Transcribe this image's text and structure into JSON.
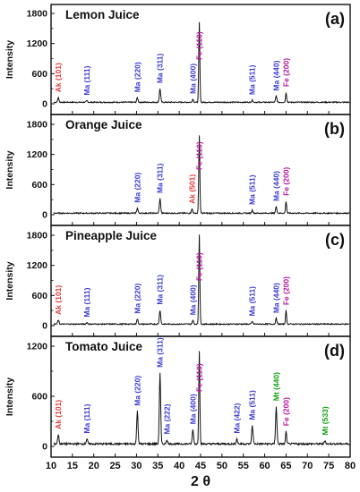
{
  "chart_data": {
    "type": "line",
    "xlabel": "2 θ",
    "xlim": [
      10,
      80
    ],
    "xticks": [
      10,
      15,
      20,
      25,
      30,
      35,
      40,
      45,
      50,
      55,
      60,
      65,
      70,
      75,
      80
    ],
    "colors": {
      "Ak": "#e53935",
      "Ma": "#3b3bd6",
      "Fe": "#b5179e",
      "Mt": "#12a112",
      "line": "#111111"
    },
    "panels": [
      {
        "title": "Lemon Juice",
        "letter": "(a)",
        "ylabel": "Intensity",
        "ylim": [
          0,
          1800
        ],
        "yticks": [
          0,
          600,
          1200,
          1800
        ],
        "baseline": 30,
        "peaks": [
          {
            "x": 11.7,
            "y": 120,
            "label": "Ak (101)",
            "phase": "Ak"
          },
          {
            "x": 18.4,
            "y": 60,
            "label": "Ma (111)",
            "phase": "Ma"
          },
          {
            "x": 30.2,
            "y": 120,
            "label": "Ma (220)",
            "phase": "Ma"
          },
          {
            "x": 35.5,
            "y": 300,
            "label": "Ma (311)",
            "phase": "Ma"
          },
          {
            "x": 43.2,
            "y": 90,
            "label": "Ma (400)",
            "phase": "Ma"
          },
          {
            "x": 44.7,
            "y": 1620,
            "label": "Fe (110)",
            "phase": "Fe"
          },
          {
            "x": 57.1,
            "y": 70,
            "label": "Ma (511)",
            "phase": "Ma"
          },
          {
            "x": 62.7,
            "y": 150,
            "label": "Ma (440)",
            "phase": "Ma"
          },
          {
            "x": 65.0,
            "y": 230,
            "label": "Fe (200)",
            "phase": "Fe"
          }
        ]
      },
      {
        "title": "Orange Juice",
        "letter": "(b)",
        "ylabel": "Intensity",
        "ylim": [
          0,
          1800
        ],
        "yticks": [
          0,
          600,
          1200,
          1800
        ],
        "baseline": 30,
        "peaks": [
          {
            "x": 30.2,
            "y": 130,
            "label": "Ma (220)",
            "phase": "Ma"
          },
          {
            "x": 35.5,
            "y": 320,
            "label": "Ma (311)",
            "phase": "Ma"
          },
          {
            "x": 43.0,
            "y": 110,
            "label": "Ak (501)",
            "phase": "Ak"
          },
          {
            "x": 44.7,
            "y": 1580,
            "label": "Fe (110)",
            "phase": "Fe"
          },
          {
            "x": 57.1,
            "y": 90,
            "label": "Ma (511)",
            "phase": "Ma"
          },
          {
            "x": 62.7,
            "y": 160,
            "label": "Ma (440)",
            "phase": "Ma"
          },
          {
            "x": 65.0,
            "y": 270,
            "label": "Fe (200)",
            "phase": "Fe"
          }
        ]
      },
      {
        "title": "Pineapple Juice",
        "letter": "(c)",
        "ylabel": "Intensity",
        "ylim": [
          0,
          1800
        ],
        "yticks": [
          0,
          600,
          1200,
          1800
        ],
        "baseline": 30,
        "peaks": [
          {
            "x": 11.7,
            "y": 110,
            "label": "Ak (101)",
            "phase": "Ak"
          },
          {
            "x": 18.4,
            "y": 60,
            "label": "Ma (111)",
            "phase": "Ma"
          },
          {
            "x": 30.2,
            "y": 130,
            "label": "Ma (220)",
            "phase": "Ma"
          },
          {
            "x": 35.5,
            "y": 310,
            "label": "Ma (311)",
            "phase": "Ma"
          },
          {
            "x": 43.2,
            "y": 100,
            "label": "Ma (400)",
            "phase": "Ma"
          },
          {
            "x": 44.7,
            "y": 1820,
            "label": "Fe (110)",
            "phase": "Fe"
          },
          {
            "x": 57.1,
            "y": 80,
            "label": "Ma (511)",
            "phase": "Ma"
          },
          {
            "x": 62.7,
            "y": 140,
            "label": "Ma (440)",
            "phase": "Ma"
          },
          {
            "x": 65.0,
            "y": 300,
            "label": "Fe (200)",
            "phase": "Fe"
          }
        ]
      },
      {
        "title": "Tomato Juice",
        "letter": "(d)",
        "ylabel": "Intensity",
        "ylim": [
          0,
          1200
        ],
        "yticks": [
          0,
          600,
          1200
        ],
        "baseline": 30,
        "peaks": [
          {
            "x": 11.7,
            "y": 140,
            "label": "Ak (101)",
            "phase": "Ak"
          },
          {
            "x": 18.4,
            "y": 90,
            "label": "Ma (111)",
            "phase": "Ma"
          },
          {
            "x": 30.2,
            "y": 420,
            "label": "Ma (220)",
            "phase": "Ma"
          },
          {
            "x": 35.5,
            "y": 880,
            "label": "Ma (311)",
            "phase": "Ma"
          },
          {
            "x": 37.1,
            "y": 80,
            "label": "Ma (222)",
            "phase": "Ma"
          },
          {
            "x": 43.2,
            "y": 200,
            "label": "Ma (400)",
            "phase": "Ma"
          },
          {
            "x": 44.7,
            "y": 1150,
            "label": "Fe (110)",
            "phase": "Fe"
          },
          {
            "x": 53.5,
            "y": 90,
            "label": "Ma (422)",
            "phase": "Ma"
          },
          {
            "x": 57.1,
            "y": 250,
            "label": "Ma (511)",
            "phase": "Ma"
          },
          {
            "x": 62.7,
            "y": 480,
            "label": "Mt (440)",
            "phase": "Mt"
          },
          {
            "x": 65.0,
            "y": 180,
            "label": "Fe (200)",
            "phase": "Fe"
          },
          {
            "x": 74.1,
            "y": 70,
            "label": "Mt (533)",
            "phase": "Mt"
          }
        ]
      }
    ]
  }
}
